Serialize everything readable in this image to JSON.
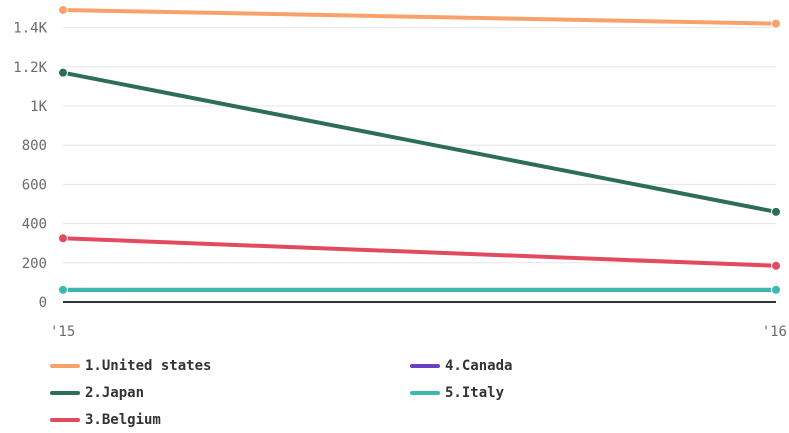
{
  "chart_data": {
    "type": "line",
    "title": "",
    "xlabel": "",
    "ylabel": "",
    "x": [
      "'15",
      "'16"
    ],
    "ylim": [
      0,
      1500
    ],
    "yticks": [
      {
        "value": 0,
        "label": "0"
      },
      {
        "value": 200,
        "label": "200"
      },
      {
        "value": 400,
        "label": "400"
      },
      {
        "value": 600,
        "label": "600"
      },
      {
        "value": 800,
        "label": "800"
      },
      {
        "value": 1000,
        "label": "1K"
      },
      {
        "value": 1200,
        "label": "1.2K"
      },
      {
        "value": 1400,
        "label": "1.4K"
      }
    ],
    "grid": true,
    "legend_position": "bottom",
    "series": [
      {
        "name": "1.United states",
        "values": [
          1490,
          1420
        ],
        "color": "#f7a26b"
      },
      {
        "name": "2.Japan",
        "values": [
          1170,
          460
        ],
        "color": "#2d6e56"
      },
      {
        "name": "3.Belgium",
        "values": [
          325,
          185
        ],
        "color": "#e24a5f"
      },
      {
        "name": "4.Canada",
        "values": [
          62,
          62
        ],
        "color": "#6a3fc0"
      },
      {
        "name": "5.Italy",
        "values": [
          62,
          62
        ],
        "color": "#3cb8ad"
      }
    ]
  }
}
